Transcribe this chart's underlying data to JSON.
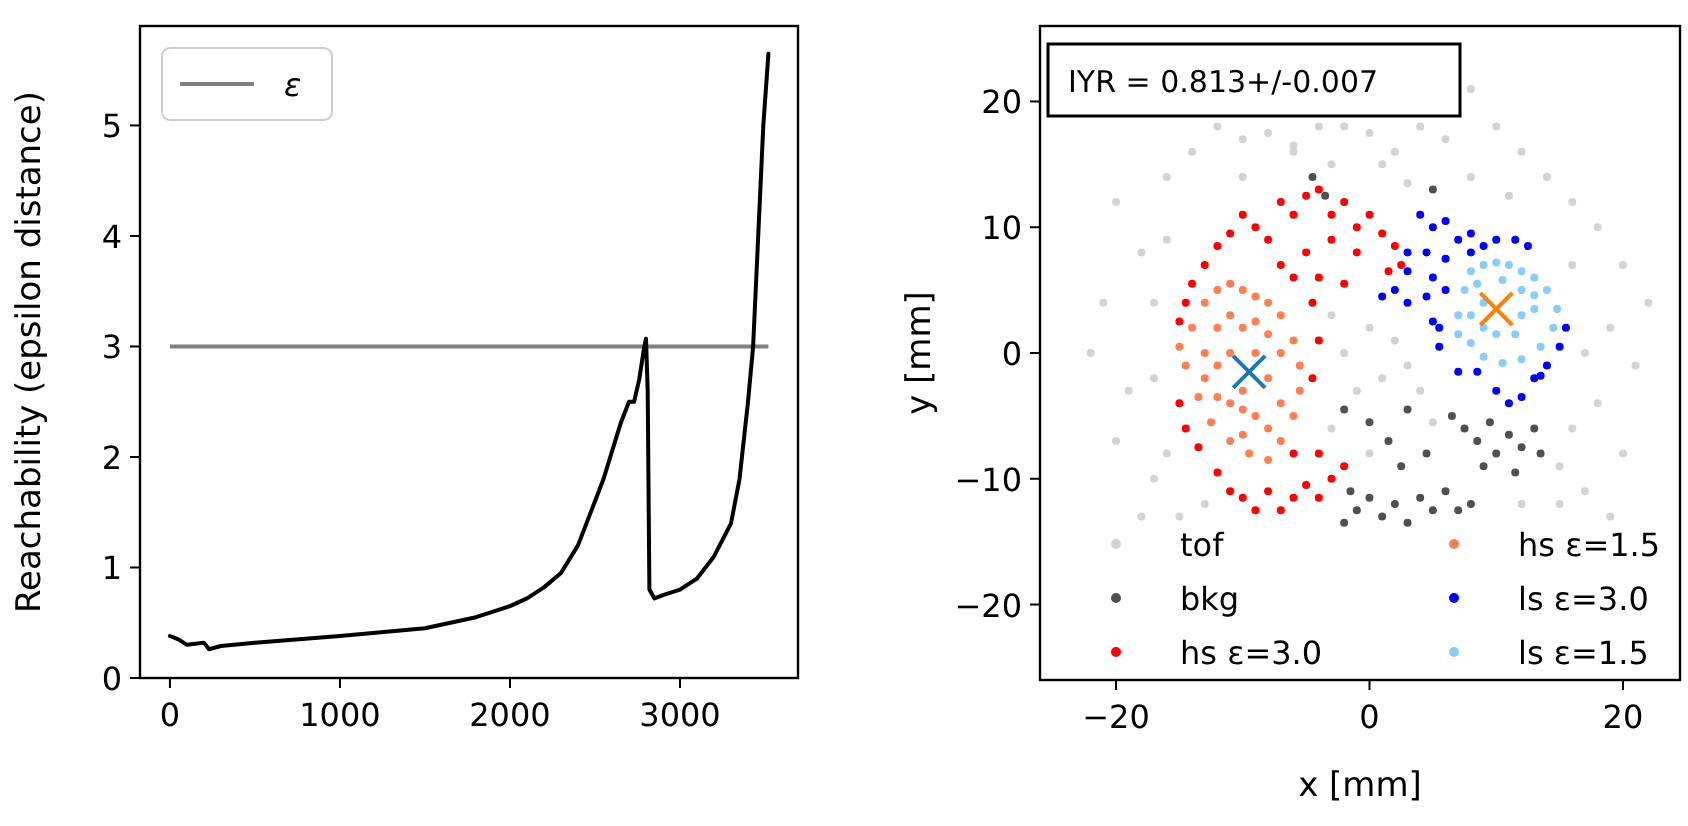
{
  "chart_data": [
    {
      "type": "line",
      "ylabel": "Reachability (epsilon distance)",
      "xlim": [
        -176,
        3694
      ],
      "ylim": [
        0,
        5.9
      ],
      "xticks": [
        0,
        1000,
        2000,
        3000
      ],
      "yticks": [
        0,
        1,
        2,
        3,
        4,
        5
      ],
      "grid": false,
      "legend": "top left",
      "marker": "none",
      "line_style": "solid",
      "x": [
        0,
        50,
        100,
        150,
        200,
        230,
        300,
        500,
        1000,
        1500,
        1800,
        2000,
        2100,
        2200,
        2300,
        2400,
        2500,
        2550,
        2600,
        2650,
        2700,
        2730,
        2760,
        2790,
        2800,
        2810,
        2820,
        2850,
        2900,
        3000,
        3100,
        3200,
        3300,
        3350,
        3400,
        3430,
        3460,
        3490,
        3520
      ],
      "series": [
        {
          "color": "#000000",
          "values": [
            0.38,
            0.35,
            0.3,
            0.31,
            0.32,
            0.26,
            0.29,
            0.32,
            0.38,
            0.45,
            0.55,
            0.65,
            0.72,
            0.82,
            0.95,
            1.2,
            1.6,
            1.8,
            2.05,
            2.3,
            2.5,
            2.5,
            2.7,
            3.0,
            3.07,
            2.6,
            0.8,
            0.72,
            0.75,
            0.8,
            0.9,
            1.1,
            1.4,
            1.8,
            2.5,
            3.0,
            4.0,
            5.0,
            5.65
          ]
        }
      ],
      "ref_lines": [
        {
          "axis": "y",
          "value": 3,
          "label": "ε",
          "color": "#808080",
          "line_style": "solid"
        }
      ]
    },
    {
      "type": "scatter",
      "xlabel": "x [mm]",
      "ylabel": "y [mm]",
      "xlim": [
        -26,
        24.5
      ],
      "ylim": [
        -26,
        26
      ],
      "grid": false,
      "legend": "bottom",
      "marker": "circle",
      "xticks": [
        {
          "value": -20,
          "label": "−20"
        },
        0,
        20
      ],
      "yticks": [
        {
          "value": -20,
          "label": "−20"
        },
        {
          "value": -10,
          "label": "−10"
        },
        0,
        10,
        20
      ],
      "annotations": [
        "IYR = 0.813+/-0.007"
      ],
      "series": [
        {
          "name": "tof",
          "color": "#d3d3d3",
          "x": [
            -20,
            -18,
            -21,
            -22,
            -19,
            -20,
            -17,
            -18,
            -16,
            -14,
            -12,
            -10,
            -8,
            -6,
            -4,
            -2,
            0,
            2,
            4,
            6,
            8,
            10,
            12,
            14,
            16,
            18,
            20,
            22,
            19,
            21,
            18,
            20,
            17,
            19,
            15,
            -6,
            -3,
            1,
            3,
            8,
            11,
            16,
            17,
            16,
            -16,
            -17,
            -17,
            -16,
            -3,
            -2,
            0,
            2,
            1,
            -1,
            3,
            4,
            -3,
            0,
            5,
            15,
            -13,
            -15,
            12,
            -10
          ],
          "values": [
            12,
            8,
            4,
            0,
            -3,
            -7,
            -10,
            -13,
            14,
            16,
            18,
            17,
            17.5,
            16.5,
            18,
            18,
            17.5,
            16,
            18,
            17,
            21,
            18,
            16,
            14,
            12,
            10,
            7,
            4,
            2,
            -1,
            -4,
            -8,
            -11,
            -13,
            -12,
            16,
            15,
            15,
            13.5,
            14,
            12.5,
            7,
            0,
            -6,
            9,
            4,
            -2,
            -8,
            3,
            0,
            2,
            1,
            -2,
            -3,
            -1,
            -3,
            -6,
            -8,
            -5.5,
            -9,
            -12,
            -13,
            -12,
            14
          ]
        },
        {
          "name": "bkg",
          "color": "#505050",
          "x": [
            -4.5,
            -3.5,
            5,
            -2,
            0,
            1.5,
            2.5,
            -1.5,
            -1,
            0,
            1,
            2,
            3,
            4,
            5,
            6,
            7,
            8,
            -2,
            7.5,
            8.5,
            9.5,
            10,
            11,
            12,
            13,
            13.5,
            11.5,
            9,
            6.5,
            3,
            4.5
          ],
          "values": [
            14,
            12.5,
            13,
            -4.5,
            -5.5,
            -7,
            -9,
            -11,
            -12.5,
            -11.5,
            -13,
            -12,
            -13.5,
            -11.5,
            -12.5,
            -11,
            -12.5,
            -12,
            -13.5,
            -6,
            -7,
            -5.5,
            -8,
            -6.5,
            -7.5,
            -6,
            -8,
            -9.5,
            -9,
            -5,
            -4.5,
            -8
          ]
        },
        {
          "name": "hs ε=3.0",
          "color": "#ff0000",
          "x": [
            -15,
            -14.5,
            -14,
            -13,
            -12,
            -11,
            -10,
            -9,
            -8,
            -7,
            -6,
            -5,
            -4,
            -3,
            -2,
            -1,
            0,
            1,
            2,
            2.5,
            1.5,
            -1,
            -3,
            -5,
            -6,
            -7,
            -4,
            -2,
            -4.5,
            -4,
            -4.5,
            -15,
            -14.5,
            -13.5,
            -12,
            -11,
            -10,
            -9,
            -8,
            -7,
            -6,
            -5,
            -4,
            -3,
            -2,
            -6,
            -4
          ],
          "values": [
            2.5,
            4,
            5.5,
            7,
            8.5,
            9.5,
            11,
            10,
            9,
            12,
            11,
            12.5,
            13,
            11,
            12,
            10,
            11,
            9.5,
            8.5,
            7,
            6.5,
            8,
            9,
            8,
            6,
            7,
            6,
            5.5,
            4,
            1,
            -2,
            -4,
            -6,
            -7.5,
            -9.5,
            -11,
            -11.5,
            -12.5,
            -11,
            -12.5,
            -11.5,
            -10.5,
            -11.5,
            -10,
            -9,
            -8,
            -8
          ]
        },
        {
          "name": "hs ε=1.5",
          "color": "#ff7f50",
          "x": [
            -14,
            -13,
            -12,
            -11,
            -10,
            -9,
            -8,
            -7,
            -6,
            -5.5,
            -5.5,
            -6,
            -7,
            -8,
            -9.5,
            -11,
            -12.5,
            -13.5,
            -14.5,
            -15,
            -12,
            -10,
            -8,
            -12,
            -10,
            -8,
            -7,
            -9,
            -11,
            -13,
            -11,
            -9,
            -7,
            -10,
            -12,
            -8,
            -10,
            -11,
            -9,
            -13
          ],
          "values": [
            2,
            4,
            5,
            5.5,
            5,
            4.5,
            4,
            3,
            1,
            -1,
            -3,
            -5,
            -7,
            -8.5,
            -8,
            -7,
            -5.5,
            -3.5,
            -1,
            0.5,
            2,
            2,
            1.5,
            -1,
            -4.5,
            -2,
            -4,
            -5,
            -4,
            -2,
            0,
            0,
            0,
            -3,
            -3.5,
            -6,
            -6.5,
            3,
            2.5,
            0
          ]
        },
        {
          "name": "ls ε=3.0",
          "color": "#0000ff",
          "x": [
            4,
            5,
            6,
            7,
            8,
            9,
            10,
            11.5,
            12.5,
            3,
            4.5,
            6,
            8,
            3,
            5,
            2,
            1,
            3,
            4.5,
            6,
            5,
            5.5,
            5.5,
            7,
            8.5,
            10,
            11,
            12,
            13,
            14,
            15,
            15.5,
            13.5
          ],
          "values": [
            11,
            10,
            10.5,
            9,
            9.5,
            8.5,
            9,
            9,
            8.5,
            8,
            8,
            7.5,
            8,
            6.5,
            6,
            5,
            4.5,
            4,
            4.5,
            5,
            2.5,
            2,
            0.5,
            -1.5,
            -1.5,
            -3,
            -4,
            -3.5,
            -2,
            -1,
            0.5,
            2,
            -1.8
          ]
        },
        {
          "name": "ls ε=1.5",
          "color": "#87cefa",
          "x": [
            7,
            7.5,
            8,
            9,
            10,
            11,
            12,
            13,
            14,
            14.8,
            14.5,
            13.5,
            12,
            10.5,
            9,
            8,
            7,
            9,
            8,
            13,
            12,
            13,
            10,
            11.5,
            9,
            12,
            8.5,
            10.5
          ],
          "values": [
            3,
            5,
            6.5,
            7,
            7.2,
            7,
            6.5,
            6,
            5,
            3.5,
            2,
            0.5,
            -0.5,
            -0.8,
            -0.3,
            0.8,
            1.5,
            4,
            3,
            4.6,
            3,
            3.5,
            1.5,
            1.5,
            2,
            5,
            5.5,
            5.8
          ]
        },
        {
          "color": "#1f77b4",
          "marker": "cross",
          "x": [
            -9.5
          ],
          "values": [
            -1.5
          ]
        },
        {
          "color": "#ff7f0e",
          "marker": "cross",
          "x": [
            10
          ],
          "values": [
            3.5
          ]
        }
      ]
    }
  ]
}
